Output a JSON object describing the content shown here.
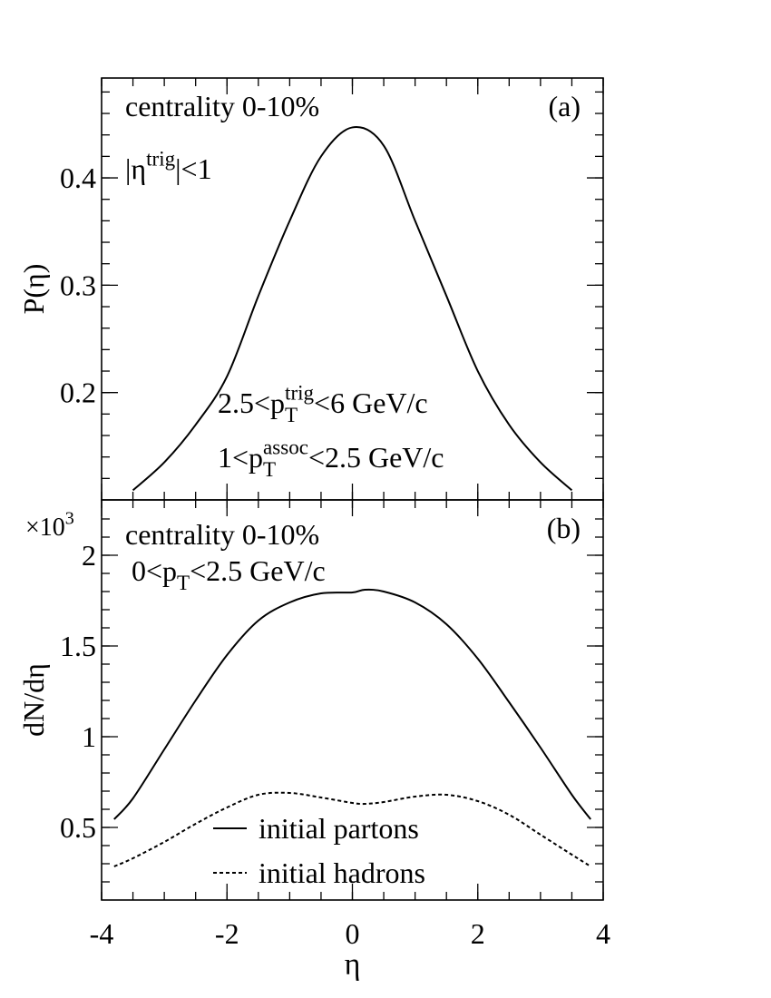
{
  "chart_data": [
    {
      "type": "line",
      "panel_label": "(a)",
      "ylabel": "P(η)",
      "annotations": [
        [
          {
            "t": "centrality 0-10%"
          }
        ],
        [
          {
            "t": "|η"
          },
          {
            "t": "trig",
            "pos": "sup"
          },
          {
            "t": "|<1"
          }
        ],
        [
          {
            "t": "2.5<p"
          },
          {
            "t": "T",
            "pos": "sub"
          },
          {
            "t": "trig",
            "pos": "sup"
          },
          {
            "t": "<6 GeV/c"
          }
        ],
        [
          {
            "t": "1<p"
          },
          {
            "t": "T",
            "pos": "sub"
          },
          {
            "t": "assoc",
            "pos": "sup"
          },
          {
            "t": "<2.5 GeV/c"
          }
        ]
      ],
      "x": [
        -3.5,
        -3,
        -2.5,
        -2,
        -1.5,
        -1,
        -0.5,
        0,
        0.5,
        1,
        1.5,
        2,
        2.5,
        3,
        3.5
      ],
      "series": [
        {
          "color": "#000000",
          "dash": "solid",
          "values": [
            0.109,
            0.135,
            0.17,
            0.215,
            0.29,
            0.36,
            0.42,
            0.447,
            0.43,
            0.36,
            0.29,
            0.22,
            0.17,
            0.135,
            0.109
          ]
        }
      ],
      "xlim": [
        -4,
        4
      ],
      "xticks": [
        -4,
        -2,
        0,
        2,
        4
      ],
      "xtick_labels": false,
      "ylim": [
        0.1,
        0.493
      ],
      "yticks": [
        0.2,
        0.3,
        0.4
      ]
    },
    {
      "type": "line",
      "panel_label": "(b)",
      "ylabel": "dN/dη",
      "xlabel": "η",
      "y_multiplier": [
        {
          "t": "×10"
        },
        {
          "t": "3",
          "pos": "sup"
        }
      ],
      "annotations": [
        [
          {
            "t": "centrality 0-10%"
          }
        ],
        [
          {
            "t": "0<p"
          },
          {
            "t": "T",
            "pos": "sub"
          },
          {
            "t": "<2.5 GeV/c"
          }
        ]
      ],
      "x": [
        -3.8,
        -3.5,
        -3,
        -2.5,
        -2,
        -1.5,
        -1,
        -0.5,
        0,
        0.2,
        0.5,
        1,
        1.5,
        2,
        2.5,
        3,
        3.5,
        3.8
      ],
      "series": [
        {
          "name": "initial partons",
          "color": "#000000",
          "dash": "solid",
          "values": [
            0.545,
            0.66,
            0.93,
            1.2,
            1.45,
            1.64,
            1.74,
            1.79,
            1.795,
            1.81,
            1.8,
            1.74,
            1.62,
            1.43,
            1.19,
            0.94,
            0.68,
            0.545
          ]
        },
        {
          "name": "initial hadrons",
          "color": "#000000",
          "dash": "dashed",
          "values": [
            0.285,
            0.33,
            0.42,
            0.52,
            0.61,
            0.68,
            0.69,
            0.665,
            0.635,
            0.63,
            0.64,
            0.67,
            0.68,
            0.645,
            0.57,
            0.46,
            0.35,
            0.285
          ]
        }
      ],
      "xlim": [
        -4,
        4
      ],
      "xticks": [
        -4,
        -2,
        0,
        2,
        4
      ],
      "xtick_labels": true,
      "ylim": [
        0.1,
        2.305
      ],
      "yticks": [
        0.5,
        1,
        1.5,
        2
      ]
    }
  ]
}
